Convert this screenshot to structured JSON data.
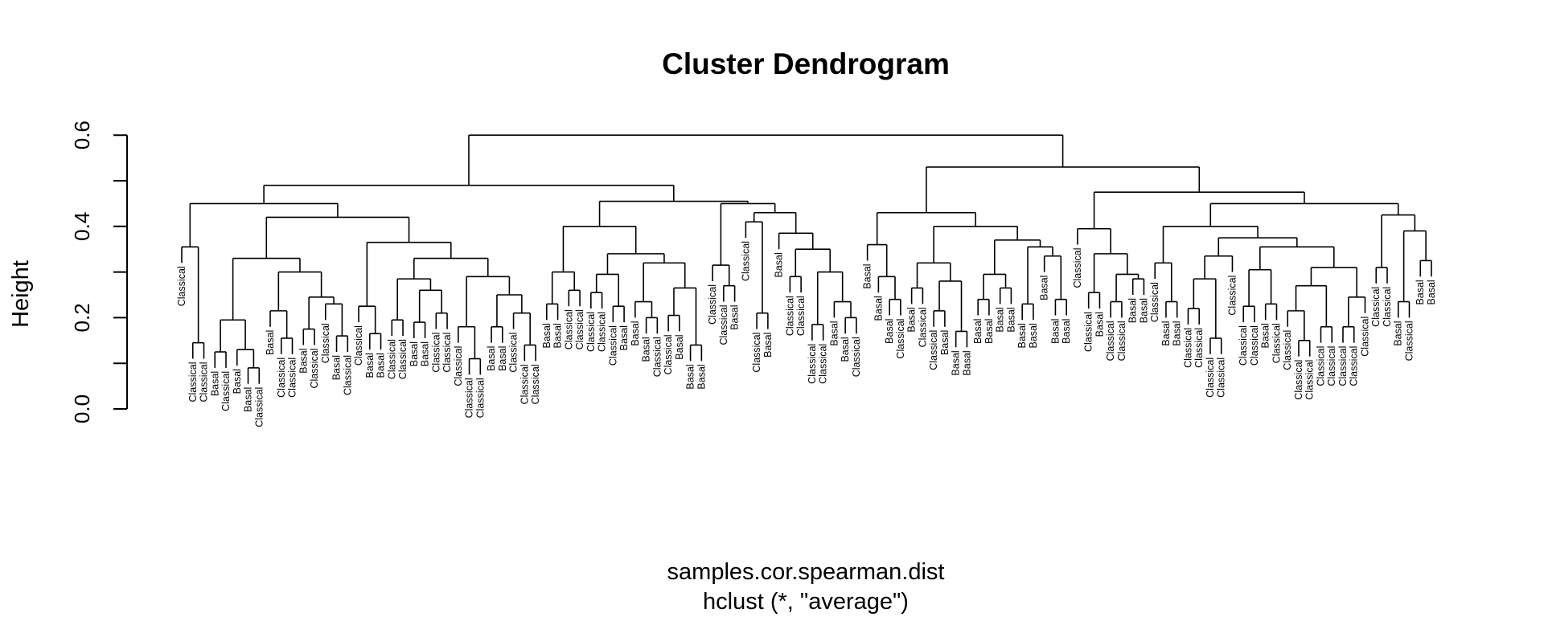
{
  "chart_data": {
    "type": "dendrogram",
    "title": "Cluster Dendrogram",
    "xlabel": "samples.cor.spearman.dist",
    "sub": "hclust (*, \"average\")",
    "ylabel": "Height",
    "ylim": [
      0,
      0.6
    ],
    "yticks": [
      "0.0",
      "0.2",
      "0.4",
      "0.6"
    ],
    "colors": {
      "line": "#000000",
      "text": "#000000"
    },
    "tree": [
      0.6,
      [
        0.49,
        [
          0.45,
          [
            0.355,
            "Classical",
            [
              0.145,
              "Classical",
              "Classical"
            ]
          ],
          [
            0.42,
            [
              0.33,
              [
                0.195,
                [
                  0.125,
                  "Basal",
                  "Classical"
                ],
                [
                  0.13,
                  "Basal",
                  [
                    0.09,
                    "Basal",
                    "Classical"
                  ]
                ]
              ],
              [
                0.3,
                [
                  0.215,
                  "Basal",
                  [
                    0.155,
                    "Classical",
                    "Classical"
                  ]
                ],
                [
                  0.245,
                  [
                    0.175,
                    "Basal",
                    "Classical"
                  ],
                  [
                    0.23,
                    "Classical",
                    [
                      0.16,
                      "Basal",
                      "Classical"
                    ]
                  ]
                ]
              ]
            ],
            [
              0.365,
              [
                0.225,
                "Classical",
                [
                  0.165,
                  "Basal",
                  "Basal"
                ]
              ],
              [
                0.33,
                [
                  0.285,
                  [
                    0.195,
                    "Classical",
                    "Classical"
                  ],
                  [
                    0.26,
                    [
                      0.19,
                      "Basal",
                      "Basal"
                    ],
                    [
                      0.21,
                      "Classical",
                      "Classical"
                    ]
                  ]
                ],
                [
                  0.29,
                  [
                    0.18,
                    "Classical",
                    [
                      0.11,
                      "Classical",
                      "Classical"
                    ]
                  ],
                  [
                    0.25,
                    [
                      0.18,
                      "Basal",
                      "Basal"
                    ],
                    [
                      0.21,
                      "Classical",
                      [
                        0.14,
                        "Classical",
                        "Classical"
                      ]
                    ]
                  ]
                ]
              ]
            ]
          ]
        ],
        [
          0.455,
          [
            0.4,
            [
              0.3,
              [
                0.23,
                "Basal",
                "Basal"
              ],
              [
                0.26,
                "Classical",
                "Classical"
              ]
            ],
            [
              0.34,
              [
                0.295,
                [
                  0.255,
                  "Classical",
                  "Classical"
                ],
                [
                  0.225,
                  "Classical",
                  "Basal"
                ]
              ],
              [
                0.32,
                [
                  0.235,
                  "Basal",
                  [
                    0.2,
                    "Basal",
                    "Classical"
                  ]
                ],
                [
                  0.265,
                  [
                    0.205,
                    "Classical",
                    "Basal"
                  ],
                  [
                    0.14,
                    "Basal",
                    "Basal"
                  ]
                ]
              ]
            ]
          ],
          [
            0.45,
            [
              0.315,
              "Classical",
              [
                0.27,
                "Classical",
                "Basal"
              ]
            ],
            [
              0.43,
              [
                0.41,
                "Classical",
                [
                  0.21,
                  "Classical",
                  "Basal"
                ]
              ],
              [
                0.385,
                "Basal",
                [
                  0.35,
                  [
                    0.29,
                    "Classical",
                    "Classical"
                  ],
                  [
                    0.3,
                    [
                      0.185,
                      "Classical",
                      "Classical"
                    ],
                    [
                      0.235,
                      "Basal",
                      [
                        0.2,
                        "Basal",
                        "Classical"
                      ]
                    ]
                  ]
                ]
              ]
            ]
          ]
        ]
      ],
      [
        0.53,
        [
          0.43,
          [
            0.36,
            "Basal",
            [
              0.29,
              "Basal",
              [
                0.24,
                "Basal",
                "Classical"
              ]
            ]
          ],
          [
            0.4,
            [
              0.32,
              [
                0.265,
                "Basal",
                "Classical"
              ],
              [
                0.28,
                [
                  0.215,
                  "Classical",
                  "Basal"
                ],
                [
                  0.17,
                  "Basal",
                  "Basal"
                ]
              ]
            ],
            [
              0.37,
              [
                0.295,
                [
                  0.24,
                  "Basal",
                  "Basal"
                ],
                [
                  0.265,
                  "Basal",
                  "Basal"
                ]
              ],
              [
                0.355,
                [
                  0.23,
                  "Basal",
                  "Basal"
                ],
                [
                  0.335,
                  "Basal",
                  [
                    0.24,
                    "Basal",
                    "Basal"
                  ]
                ]
              ]
            ]
          ]
        ],
        [
          0.475,
          [
            0.395,
            "Classical",
            [
              0.34,
              [
                0.255,
                "Classical",
                "Basal"
              ],
              [
                0.295,
                [
                  0.235,
                  "Classical",
                  "Classical"
                ],
                [
                  0.285,
                  "Basal",
                  "Basal"
                ]
              ]
            ]
          ],
          [
            0.45,
            [
              0.4,
              [
                0.32,
                "Classical",
                [
                  0.235,
                  "Basal",
                  "Basal"
                ]
              ],
              [
                0.375,
                [
                  0.335,
                  [
                    0.285,
                    [
                      0.22,
                      "Classical",
                      "Classical"
                    ],
                    [
                      0.155,
                      "Classical",
                      "Classical"
                    ]
                  ],
                  "Classical"
                ],
                [
                  0.355,
                  [
                    0.305,
                    [
                      0.225,
                      "Classical",
                      "Classical"
                    ],
                    [
                      0.23,
                      "Basal",
                      "Classical"
                    ]
                  ],
                  [
                    0.31,
                    [
                      0.27,
                      [
                        0.215,
                        "Classical",
                        [
                          0.15,
                          "Classical",
                          "Classical"
                        ]
                      ],
                      [
                        0.18,
                        "Classical",
                        "Classical"
                      ]
                    ],
                    [
                      0.245,
                      [
                        0.18,
                        "Classical",
                        "Classical"
                      ],
                      "Classical"
                    ]
                  ]
                ]
              ]
            ],
            [
              0.425,
              [
                0.31,
                "Classical",
                "Classical"
              ],
              [
                0.39,
                [
                  0.235,
                  "Basal",
                  "Classical"
                ],
                [
                  0.325,
                  "Basal",
                  "Basal"
                ]
              ]
            ]
          ]
        ]
      ]
    ]
  }
}
